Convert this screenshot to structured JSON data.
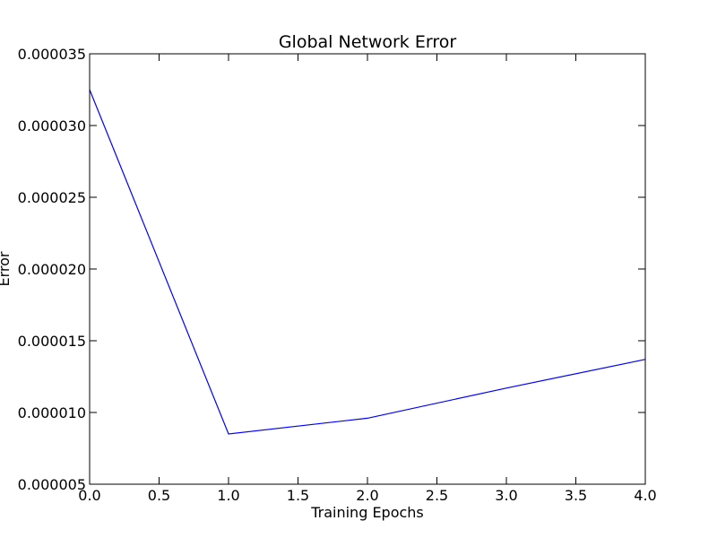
{
  "chart_data": {
    "type": "line",
    "title": "Global Network Error",
    "xlabel": "Training Epochs",
    "ylabel": "Error",
    "xlim": [
      0.0,
      4.0
    ],
    "ylim": [
      5e-06,
      3.5e-05
    ],
    "xticks": [
      "0.0",
      "0.5",
      "1.0",
      "1.5",
      "2.0",
      "2.5",
      "3.0",
      "3.5",
      "4.0"
    ],
    "yticks": [
      "0.000005",
      "0.000010",
      "0.000015",
      "0.000020",
      "0.000025",
      "0.000030",
      "0.000035"
    ],
    "grid": false,
    "legend": "none",
    "line_color": "#0000ff",
    "series": [
      {
        "x": [
          0,
          1,
          2,
          3,
          4
        ],
        "values": [
          3.25e-05,
          8.5e-06,
          9.6e-06,
          1.17e-05,
          1.37e-05
        ]
      }
    ]
  }
}
